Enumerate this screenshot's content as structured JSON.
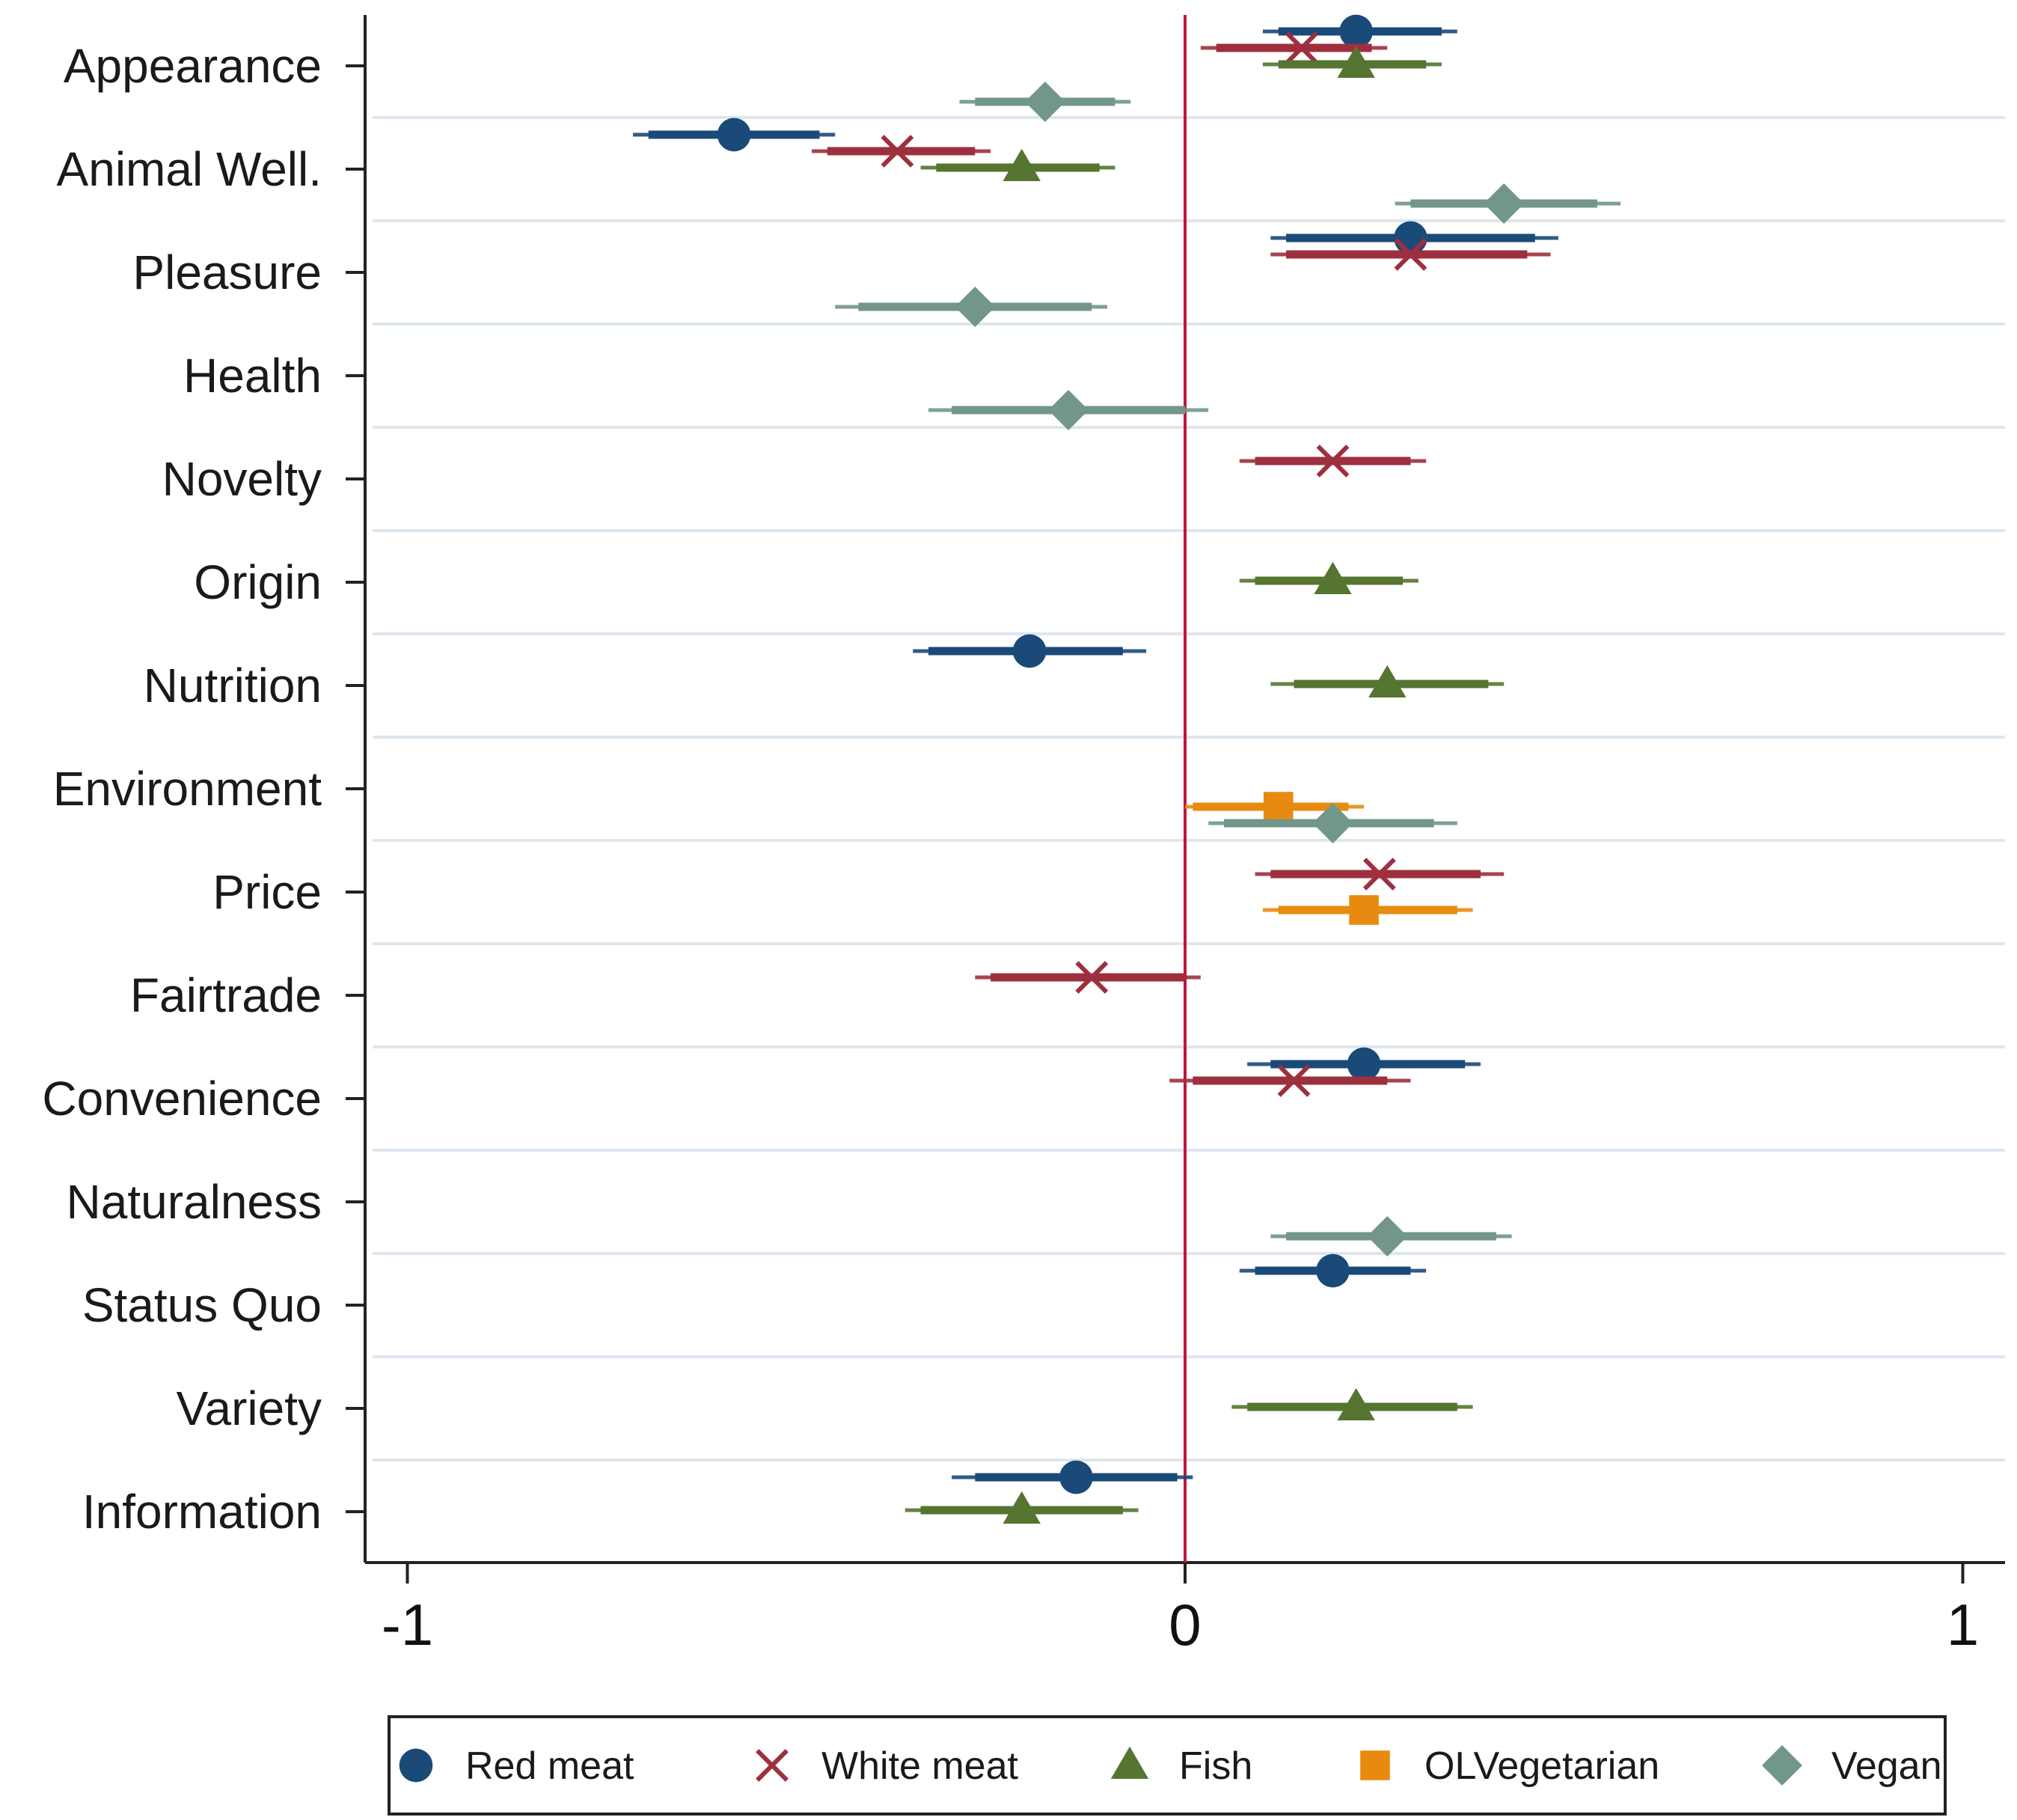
{
  "chart_data": {
    "type": "scatter",
    "subtype": "coefficient-plot-with-confidence-intervals",
    "orientation": "horizontal",
    "categories": [
      "Appearance",
      "Animal Well.",
      "Pleasure",
      "Health",
      "Novelty",
      "Origin",
      "Nutrition",
      "Environment",
      "Price",
      "Fairtrade",
      "Convenience",
      "Naturalness",
      "Status Quo",
      "Variety",
      "Information"
    ],
    "x_ticks": [
      {
        "value": -1,
        "label": "-1"
      },
      {
        "value": 0,
        "label": "0"
      },
      {
        "value": 1,
        "label": "1"
      }
    ],
    "xlim": [
      -1.05,
      1.06
    ],
    "reference_line": {
      "value": 0,
      "color": "#c0143c"
    },
    "grid": {
      "horizontal": true,
      "color": "#dde6ee"
    },
    "legend": {
      "position": "bottom",
      "boxed": true
    },
    "series": [
      {
        "name": "Red meat",
        "color": "#1a4a78",
        "marker": "circle",
        "points": [
          {
            "category": "Appearance",
            "estimate": 0.22,
            "ci90": [
              0.12,
              0.33
            ],
            "ci95": [
              0.1,
              0.35
            ]
          },
          {
            "category": "Animal Well.",
            "estimate": -0.58,
            "ci90": [
              -0.69,
              -0.47
            ],
            "ci95": [
              -0.71,
              -0.45
            ]
          },
          {
            "category": "Pleasure",
            "estimate": 0.29,
            "ci90": [
              0.13,
              0.45
            ],
            "ci95": [
              0.11,
              0.48
            ]
          },
          {
            "category": "Nutrition",
            "estimate": -0.2,
            "ci90": [
              -0.33,
              -0.08
            ],
            "ci95": [
              -0.35,
              -0.05
            ]
          },
          {
            "category": "Convenience",
            "estimate": 0.23,
            "ci90": [
              0.11,
              0.36
            ],
            "ci95": [
              0.08,
              0.38
            ]
          },
          {
            "category": "Status Quo",
            "estimate": 0.19,
            "ci90": [
              0.09,
              0.29
            ],
            "ci95": [
              0.07,
              0.31
            ]
          },
          {
            "category": "Information",
            "estimate": -0.14,
            "ci90": [
              -0.27,
              -0.01
            ],
            "ci95": [
              -0.3,
              0.01
            ]
          }
        ]
      },
      {
        "name": "White meat",
        "color": "#9e2f3e",
        "marker": "x",
        "points": [
          {
            "category": "Appearance",
            "estimate": 0.15,
            "ci90": [
              0.04,
              0.24
            ],
            "ci95": [
              0.02,
              0.26
            ]
          },
          {
            "category": "Animal Well.",
            "estimate": -0.37,
            "ci90": [
              -0.46,
              -0.27
            ],
            "ci95": [
              -0.48,
              -0.25
            ]
          },
          {
            "category": "Pleasure",
            "estimate": 0.29,
            "ci90": [
              0.13,
              0.44
            ],
            "ci95": [
              0.11,
              0.47
            ]
          },
          {
            "category": "Novelty",
            "estimate": 0.19,
            "ci90": [
              0.09,
              0.29
            ],
            "ci95": [
              0.07,
              0.31
            ]
          },
          {
            "category": "Price",
            "estimate": 0.25,
            "ci90": [
              0.11,
              0.38
            ],
            "ci95": [
              0.09,
              0.41
            ]
          },
          {
            "category": "Fairtrade",
            "estimate": -0.12,
            "ci90": [
              -0.25,
              0.0
            ],
            "ci95": [
              -0.27,
              0.02
            ]
          },
          {
            "category": "Convenience",
            "estimate": 0.14,
            "ci90": [
              0.01,
              0.26
            ],
            "ci95": [
              -0.02,
              0.29
            ]
          }
        ]
      },
      {
        "name": "Fish",
        "color": "#557530",
        "marker": "triangle",
        "points": [
          {
            "category": "Appearance",
            "estimate": 0.22,
            "ci90": [
              0.12,
              0.31
            ],
            "ci95": [
              0.1,
              0.33
            ]
          },
          {
            "category": "Animal Well.",
            "estimate": -0.21,
            "ci90": [
              -0.32,
              -0.11
            ],
            "ci95": [
              -0.34,
              -0.09
            ]
          },
          {
            "category": "Origin",
            "estimate": 0.19,
            "ci90": [
              0.09,
              0.28
            ],
            "ci95": [
              0.07,
              0.3
            ]
          },
          {
            "category": "Nutrition",
            "estimate": 0.26,
            "ci90": [
              0.14,
              0.39
            ],
            "ci95": [
              0.11,
              0.41
            ]
          },
          {
            "category": "Variety",
            "estimate": 0.22,
            "ci90": [
              0.08,
              0.35
            ],
            "ci95": [
              0.06,
              0.37
            ]
          },
          {
            "category": "Information",
            "estimate": -0.21,
            "ci90": [
              -0.34,
              -0.08
            ],
            "ci95": [
              -0.36,
              -0.06
            ]
          }
        ]
      },
      {
        "name": "OLVegetarian",
        "color": "#e88a10",
        "marker": "square",
        "points": [
          {
            "category": "Environment",
            "estimate": 0.12,
            "ci90": [
              0.01,
              0.21
            ],
            "ci95": [
              0.0,
              0.23
            ]
          },
          {
            "category": "Price",
            "estimate": 0.23,
            "ci90": [
              0.12,
              0.35
            ],
            "ci95": [
              0.1,
              0.37
            ]
          }
        ]
      },
      {
        "name": "Vegan",
        "color": "#72968a",
        "marker": "diamond",
        "points": [
          {
            "category": "Appearance",
            "estimate": -0.18,
            "ci90": [
              -0.27,
              -0.09
            ],
            "ci95": [
              -0.29,
              -0.07
            ]
          },
          {
            "category": "Animal Well.",
            "estimate": 0.41,
            "ci90": [
              0.29,
              0.53
            ],
            "ci95": [
              0.27,
              0.56
            ]
          },
          {
            "category": "Pleasure",
            "estimate": -0.27,
            "ci90": [
              -0.42,
              -0.12
            ],
            "ci95": [
              -0.45,
              -0.1
            ]
          },
          {
            "category": "Health",
            "estimate": -0.15,
            "ci90": [
              -0.3,
              0.0
            ],
            "ci95": [
              -0.33,
              0.03
            ]
          },
          {
            "category": "Environment",
            "estimate": 0.19,
            "ci90": [
              0.05,
              0.32
            ],
            "ci95": [
              0.03,
              0.35
            ]
          },
          {
            "category": "Naturalness",
            "estimate": 0.26,
            "ci90": [
              0.13,
              0.4
            ],
            "ci95": [
              0.11,
              0.42
            ]
          }
        ]
      }
    ]
  }
}
